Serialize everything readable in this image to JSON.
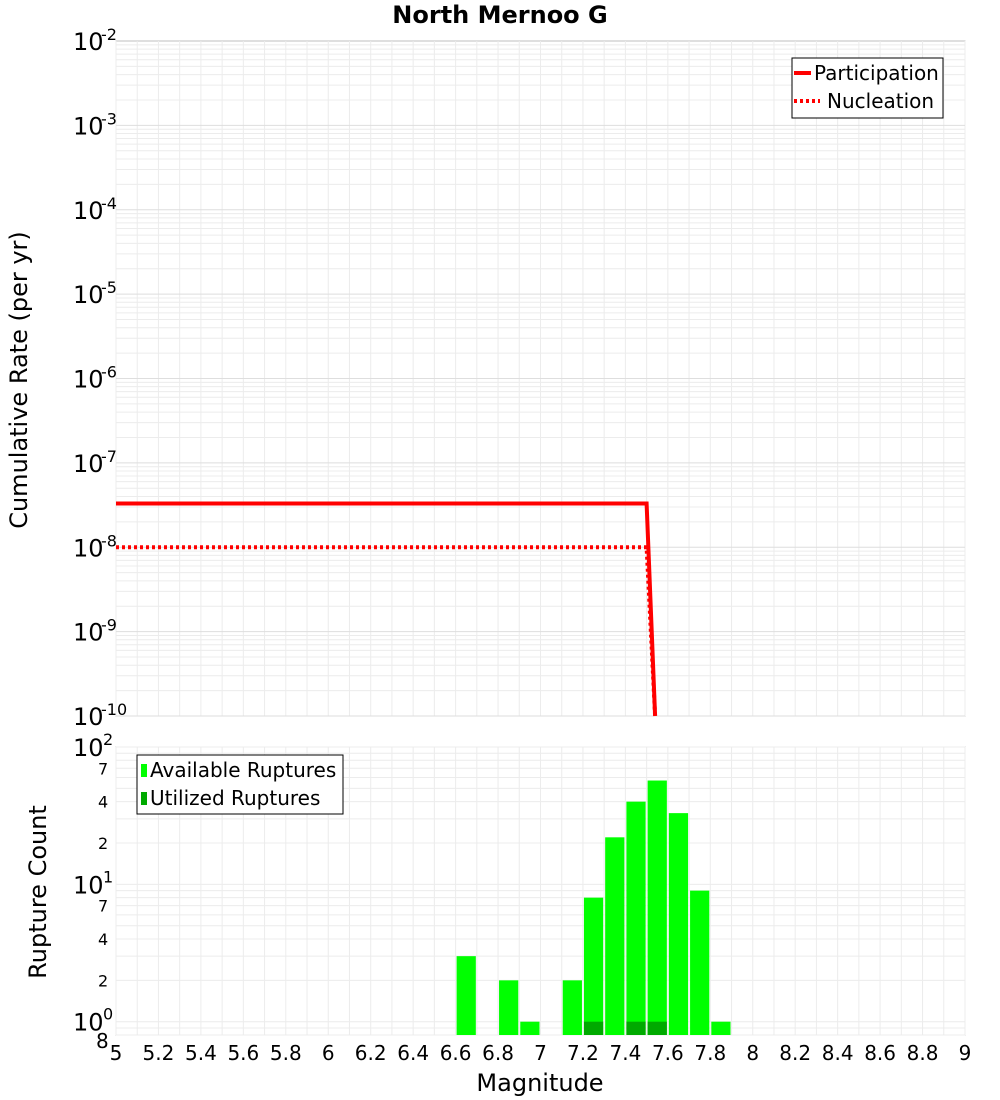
{
  "chart_data": [
    {
      "type": "line",
      "title": "North Mernoo G",
      "xlabel": "",
      "ylabel": "Cumulative Rate (per yr)",
      "yscale": "log",
      "xlim": [
        5,
        9
      ],
      "ylim": [
        1e-10,
        0.01
      ],
      "y_ticks": [
        {
          "base": "10",
          "exp": "-2"
        },
        {
          "base": "10",
          "exp": "-3"
        },
        {
          "base": "10",
          "exp": "-4"
        },
        {
          "base": "10",
          "exp": "-5"
        },
        {
          "base": "10",
          "exp": "-6"
        },
        {
          "base": "10",
          "exp": "-7"
        },
        {
          "base": "10",
          "exp": "-8"
        },
        {
          "base": "10",
          "exp": "-9"
        },
        {
          "base": "10",
          "exp": "-10"
        }
      ],
      "legend_position": "top-right",
      "series": [
        {
          "name": "Participation",
          "color": "#ff0000",
          "style": "solid",
          "x": [
            5.0,
            7.5,
            7.54
          ],
          "y": [
            3.3e-08,
            3.3e-08,
            1e-10
          ]
        },
        {
          "name": "Nucleation",
          "color": "#ff0000",
          "style": "dotted",
          "x": [
            5.0,
            7.5,
            7.54
          ],
          "y": [
            1e-08,
            1e-08,
            1e-10
          ]
        }
      ]
    },
    {
      "type": "bar",
      "title": "",
      "xlabel": "Magnitude",
      "ylabel": "Rupture Count",
      "yscale": "log",
      "xlim": [
        5,
        9
      ],
      "ylim": [
        0.8,
        100
      ],
      "x_ticks": [
        "5",
        "5.2",
        "5.4",
        "5.6",
        "5.8",
        "6",
        "6.2",
        "6.4",
        "6.6",
        "6.8",
        "7",
        "7.2",
        "7.4",
        "7.6",
        "7.8",
        "8",
        "8.2",
        "8.4",
        "8.6",
        "8.8",
        "9"
      ],
      "y_major_ticks": [
        {
          "base": "10",
          "exp": "2",
          "value": 100
        },
        {
          "base": "10",
          "exp": "1",
          "value": 10
        },
        {
          "base": "10",
          "exp": "0",
          "value": 1
        }
      ],
      "y_minor_ticks": [
        {
          "label": "7",
          "value": 70
        },
        {
          "label": "4",
          "value": 40
        },
        {
          "label": "2",
          "value": 20
        },
        {
          "label": "7",
          "value": 7
        },
        {
          "label": "4",
          "value": 4
        },
        {
          "label": "2",
          "value": 2
        },
        {
          "label": "8",
          "value": 0.8
        }
      ],
      "legend_position": "top-left",
      "series": [
        {
          "name": "Available Ruptures",
          "color": "#00ff00",
          "x": [
            6.65,
            6.85,
            6.95,
            7.15,
            7.25,
            7.35,
            7.45,
            7.55,
            7.65,
            7.75,
            7.85
          ],
          "values": [
            3,
            2,
            1,
            2,
            8,
            22,
            40,
            57,
            33,
            9,
            1
          ]
        },
        {
          "name": "Utilized Ruptures",
          "color": "#00aa00",
          "x": [
            7.25,
            7.45,
            7.55
          ],
          "values": [
            1,
            1,
            1
          ]
        }
      ]
    }
  ]
}
